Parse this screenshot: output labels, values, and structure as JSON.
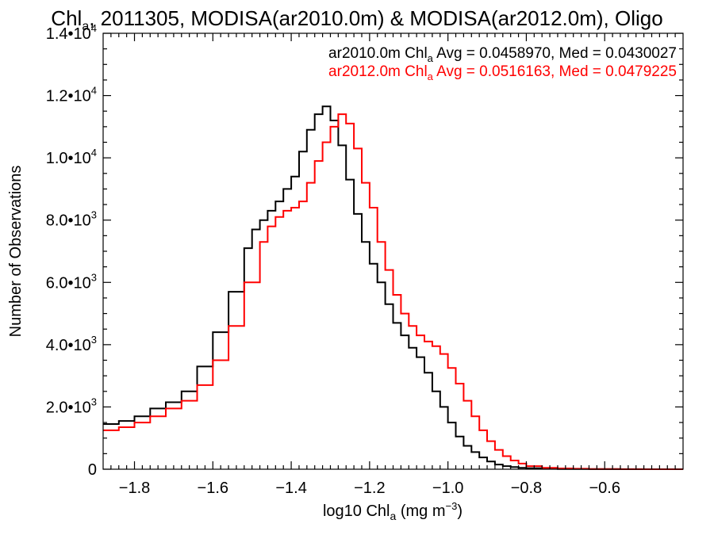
{
  "chart_data": {
    "type": "line",
    "title": "Chl",
    "title_sub": "a",
    "title_rest": ", 2011305, MODISA(ar2010.0m) & MODISA(ar2012.0m), Oligo",
    "xlabel_prefix": "log10 Chl",
    "xlabel_sub": "a",
    "xlabel_mid": " (mg m",
    "xlabel_sup": "−3",
    "xlabel_suffix": ")",
    "ylabel": "Number of Observations",
    "xlim": [
      -1.88,
      -0.4
    ],
    "ylim": [
      0,
      14000
    ],
    "x_ticks": [
      -1.8,
      -1.6,
      -1.4,
      -1.2,
      -1.0,
      -0.8,
      -0.6
    ],
    "x_tick_labels": [
      "−1.8",
      "−1.6",
      "−1.4",
      "−1.2",
      "−1.0",
      "−0.8",
      "−0.6"
    ],
    "y_ticks": [
      {
        "value": 0,
        "mant": "0",
        "exp": ""
      },
      {
        "value": 2000,
        "mant": "2.0•10",
        "exp": "3"
      },
      {
        "value": 4000,
        "mant": "4.0•10",
        "exp": "3"
      },
      {
        "value": 6000,
        "mant": "6.0•10",
        "exp": "3"
      },
      {
        "value": 8000,
        "mant": "8.0•10",
        "exp": "3"
      },
      {
        "value": 10000,
        "mant": "1.0•10",
        "exp": "4"
      },
      {
        "value": 12000,
        "mant": "1.2•10",
        "exp": "4"
      },
      {
        "value": 14000,
        "mant": "1.4•10",
        "exp": "4"
      }
    ],
    "series": [
      {
        "name": "ar2010.0m",
        "color": "#000000",
        "legend": {
          "prefix": "ar2010.0m Chl",
          "sub": "a",
          "suffix": " Avg = 0.0458970, Med = 0.0430027"
        },
        "x": [
          -1.88,
          -1.84,
          -1.8,
          -1.76,
          -1.72,
          -1.68,
          -1.64,
          -1.6,
          -1.56,
          -1.52,
          -1.5,
          -1.48,
          -1.46,
          -1.44,
          -1.42,
          -1.4,
          -1.38,
          -1.36,
          -1.34,
          -1.32,
          -1.3,
          -1.28,
          -1.26,
          -1.24,
          -1.22,
          -1.2,
          -1.18,
          -1.16,
          -1.14,
          -1.12,
          -1.1,
          -1.08,
          -1.06,
          -1.04,
          -1.02,
          -1.0,
          -0.98,
          -0.96,
          -0.94,
          -0.92,
          -0.9,
          -0.88,
          -0.86,
          -0.84,
          -0.82,
          -0.8,
          -0.76,
          -0.72,
          -0.68,
          -0.64,
          -0.6,
          -0.56,
          -0.5,
          -0.4
        ],
        "y": [
          1450,
          1550,
          1700,
          1950,
          2150,
          2500,
          3300,
          4400,
          5700,
          7100,
          7700,
          8000,
          8300,
          8600,
          9000,
          9400,
          10200,
          10900,
          11400,
          11650,
          11200,
          10400,
          9300,
          8200,
          7300,
          6600,
          6000,
          5300,
          4700,
          4300,
          3900,
          3600,
          3100,
          2500,
          2000,
          1500,
          1050,
          750,
          550,
          380,
          250,
          150,
          100,
          70,
          45,
          30,
          15,
          8,
          5,
          3,
          2,
          1,
          0,
          0
        ]
      },
      {
        "name": "ar2012.0m",
        "color": "#ff0000",
        "legend": {
          "prefix": "ar2012.0m Chl",
          "sub": "a",
          "suffix": " Avg = 0.0516163, Med = 0.0479225"
        },
        "x": [
          -1.88,
          -1.84,
          -1.8,
          -1.76,
          -1.72,
          -1.68,
          -1.64,
          -1.6,
          -1.56,
          -1.52,
          -1.48,
          -1.46,
          -1.44,
          -1.42,
          -1.4,
          -1.38,
          -1.36,
          -1.34,
          -1.32,
          -1.3,
          -1.28,
          -1.26,
          -1.24,
          -1.22,
          -1.2,
          -1.18,
          -1.16,
          -1.14,
          -1.12,
          -1.1,
          -1.08,
          -1.06,
          -1.04,
          -1.02,
          -1.0,
          -0.98,
          -0.96,
          -0.94,
          -0.92,
          -0.9,
          -0.88,
          -0.86,
          -0.84,
          -0.82,
          -0.8,
          -0.76,
          -0.72,
          -0.68,
          -0.64,
          -0.6,
          -0.56,
          -0.5,
          -0.4
        ],
        "y": [
          1250,
          1350,
          1500,
          1700,
          1950,
          2200,
          2700,
          3500,
          4600,
          6000,
          7300,
          7800,
          8100,
          8300,
          8400,
          8600,
          9200,
          9900,
          10500,
          11000,
          11400,
          11100,
          10300,
          9200,
          8400,
          7300,
          6400,
          5600,
          5000,
          4600,
          4300,
          4100,
          3950,
          3700,
          3250,
          2750,
          2200,
          1700,
          1250,
          900,
          620,
          420,
          280,
          180,
          100,
          45,
          25,
          15,
          8,
          5,
          3,
          1,
          0
        ]
      }
    ]
  }
}
